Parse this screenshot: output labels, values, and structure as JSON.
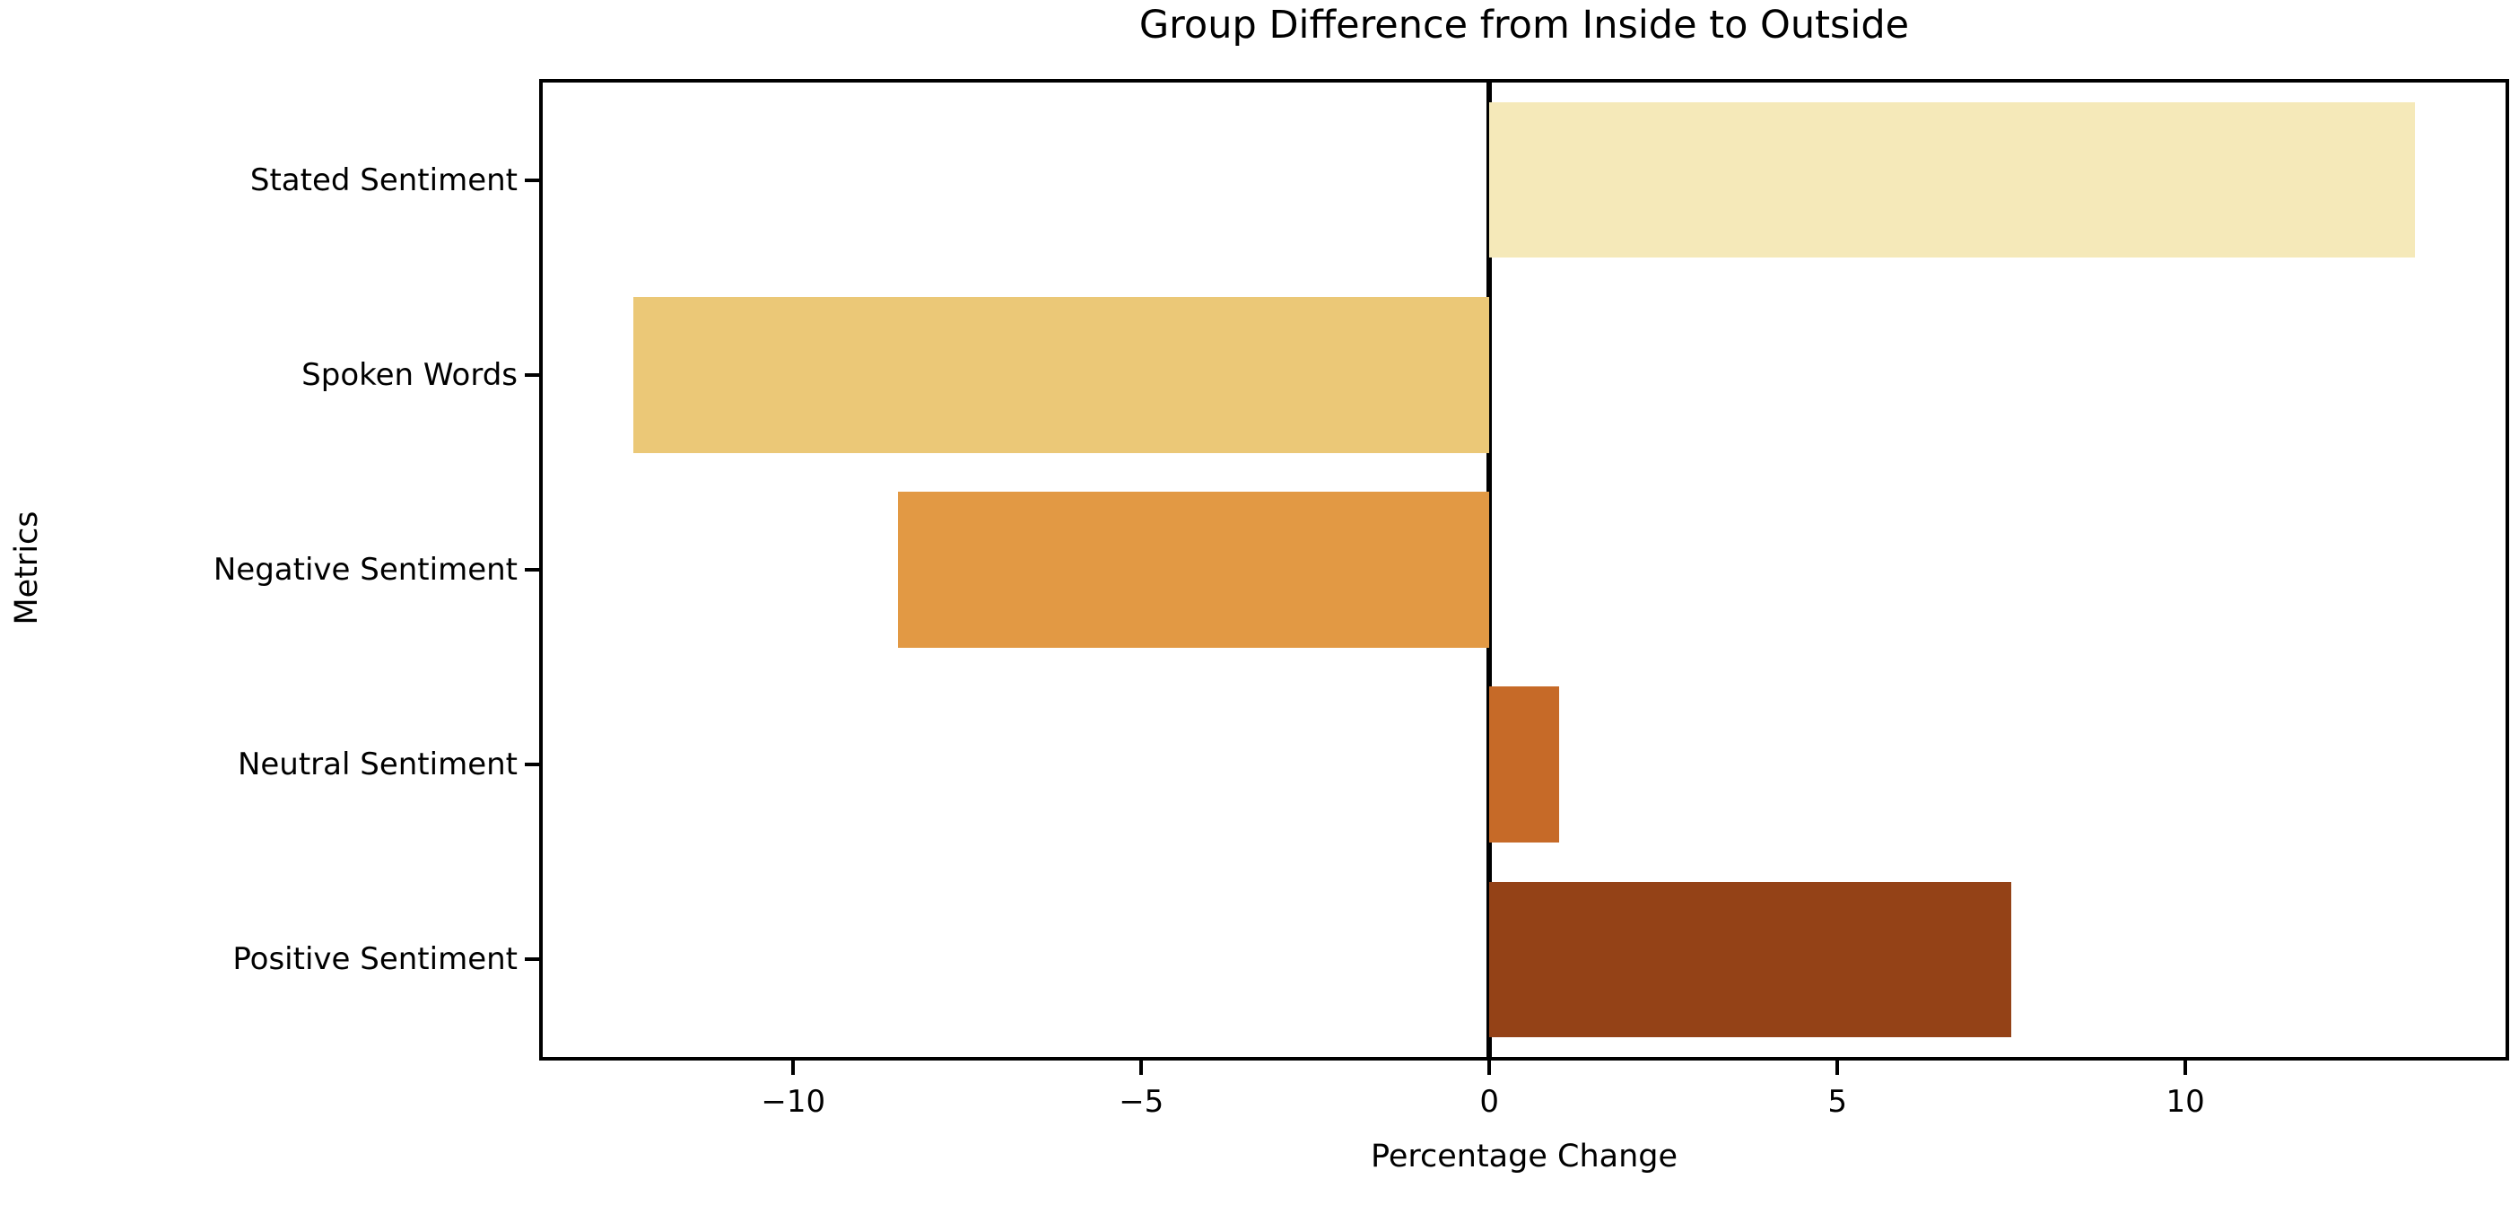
{
  "chart_data": {
    "type": "bar",
    "orientation": "horizontal",
    "title": "Group Difference from Inside to Outside",
    "xlabel": "Percentage Change",
    "ylabel": "Metrics",
    "categories": [
      "Stated Sentiment",
      "Spoken Words",
      "Negative Sentiment",
      "Neutral Sentiment",
      "Positive Sentiment"
    ],
    "values": [
      13.3,
      -12.3,
      -8.5,
      1.0,
      7.5
    ],
    "bar_colors": [
      "#f5e9b9",
      "#ebc877",
      "#e29944",
      "#c66a28",
      "#944217"
    ],
    "xlim": [
      -13.6,
      14.6
    ],
    "x_ticks": [
      -10,
      -5,
      0,
      5,
      10
    ],
    "x_tick_labels": [
      "−10",
      "−5",
      "0",
      "5",
      "10"
    ],
    "bar_fraction": 0.8,
    "zero_line": true,
    "grid": false,
    "axis_color": "#000000",
    "background_color": "#ffffff"
  }
}
